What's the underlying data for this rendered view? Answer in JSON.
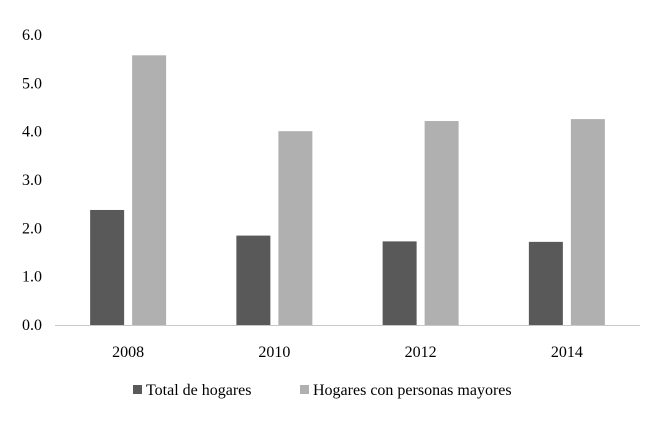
{
  "chart_data": {
    "type": "bar",
    "title": "",
    "xlabel": "",
    "ylabel": "",
    "categories": [
      "2008",
      "2010",
      "2012",
      "2014"
    ],
    "series": [
      {
        "name": "Total de hogares",
        "values": [
          2.38,
          1.85,
          1.73,
          1.72
        ],
        "color": "#595959"
      },
      {
        "name": "Hogares con personas mayores",
        "values": [
          5.58,
          4.01,
          4.22,
          4.26
        ],
        "color": "#b0b0b0"
      }
    ],
    "ylim": [
      0,
      6
    ],
    "y_ticks": [
      "0.0",
      "1.0",
      "2.0",
      "3.0",
      "4.0",
      "5.0",
      "6.0"
    ],
    "grid": false,
    "legend_position": "bottom"
  }
}
